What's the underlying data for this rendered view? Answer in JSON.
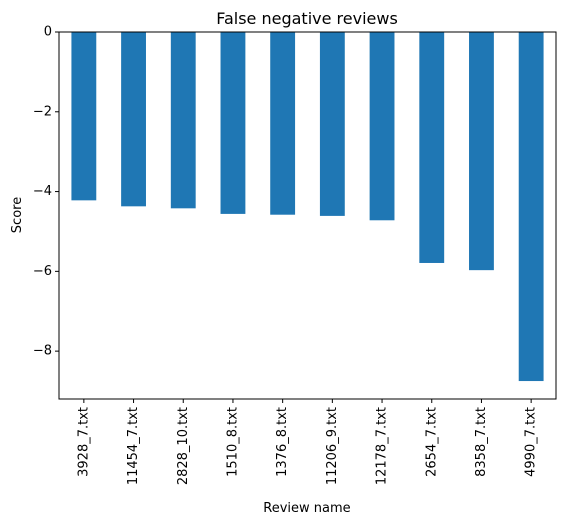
{
  "chart_data": {
    "type": "bar",
    "title": "False negative reviews",
    "xlabel": "Review name",
    "ylabel": "Score",
    "categories": [
      "3928_7.txt",
      "11454_7.txt",
      "2828_10.txt",
      "1510_8.txt",
      "1376_8.txt",
      "11206_9.txt",
      "12178_7.txt",
      "2654_7.txt",
      "8358_7.txt",
      "4990_7.txt"
    ],
    "values": [
      -4.22,
      -4.37,
      -4.42,
      -4.56,
      -4.58,
      -4.61,
      -4.72,
      -5.79,
      -5.97,
      -8.75
    ],
    "ylim": [
      -9.2,
      0
    ],
    "yticks": [
      0,
      -2,
      -4,
      -6,
      -8
    ],
    "ytick_labels": [
      "0",
      "−2",
      "−4",
      "−6",
      "−8"
    ],
    "grid": false,
    "legend": "none",
    "bar_color": "#1f77b4"
  }
}
